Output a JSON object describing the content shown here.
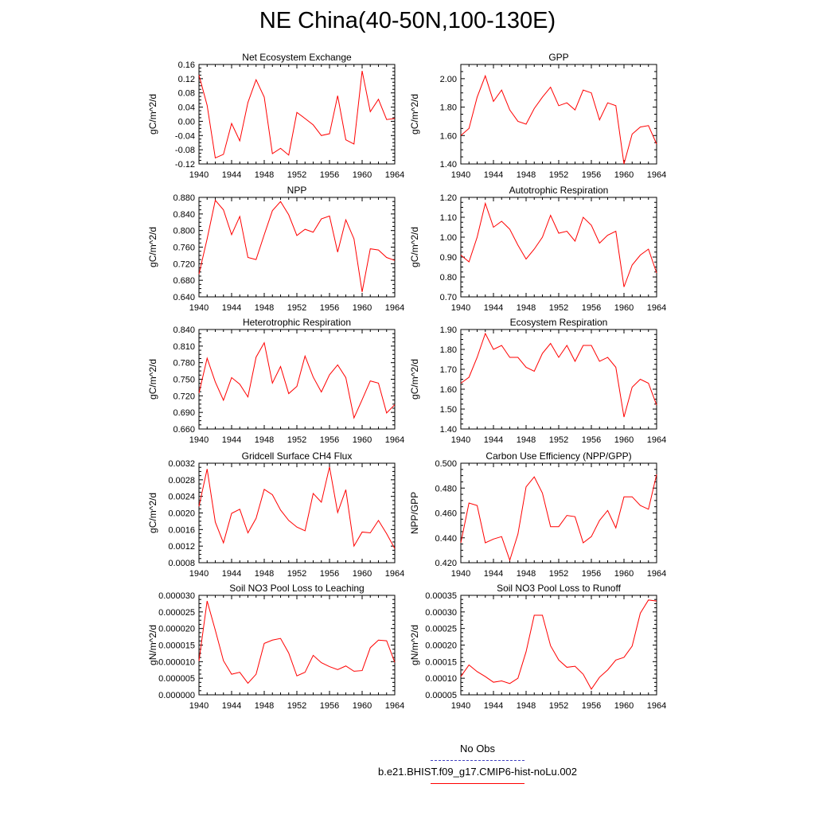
{
  "title": "NE China(40-50N,100-130E)",
  "colors": {
    "model": "#ff0000",
    "obs": "#4040c0"
  },
  "legend": {
    "obs_label": "No Obs",
    "model_label": "b.e21.BHIST.f09_g17.CMIP6-hist-noLu.002"
  },
  "chart_data": [
    {
      "type": "line",
      "title": "Net Ecosystem Exchange",
      "ylabel": "gC/m^2/d",
      "xlim": [
        1940,
        1964
      ],
      "ylim": [
        -0.12,
        0.16
      ],
      "xticks": [
        "1940",
        "1944",
        "1948",
        "1952",
        "1956",
        "1960",
        "1964"
      ],
      "yticks": [
        "-0.12",
        "-0.08",
        "-0.04",
        "0.00",
        "0.04",
        "0.08",
        "0.12",
        "0.16"
      ],
      "x": [
        1940,
        1941,
        1942,
        1943,
        1944,
        1945,
        1946,
        1947,
        1948,
        1949,
        1950,
        1951,
        1952,
        1953,
        1954,
        1955,
        1956,
        1957,
        1958,
        1959,
        1960,
        1961,
        1962,
        1963,
        1964
      ],
      "series": [
        {
          "values": [
            0.13,
            0.045,
            -0.103,
            -0.093,
            -0.006,
            -0.055,
            0.053,
            0.117,
            0.068,
            -0.091,
            -0.076,
            -0.095,
            0.025,
            0.008,
            -0.01,
            -0.04,
            -0.035,
            0.072,
            -0.052,
            -0.064,
            0.142,
            0.027,
            0.062,
            0.005,
            0.008
          ]
        }
      ]
    },
    {
      "type": "line",
      "title": "GPP",
      "ylabel": "gC/m^2/d",
      "xlim": [
        1940,
        1964
      ],
      "ylim": [
        1.4,
        2.1
      ],
      "xticks": [
        "1940",
        "1944",
        "1948",
        "1952",
        "1956",
        "1960",
        "1964"
      ],
      "yticks": [
        "1.40",
        "1.60",
        "1.80",
        "2.00"
      ],
      "x": [
        1940,
        1941,
        1942,
        1943,
        1944,
        1945,
        1946,
        1947,
        1948,
        1949,
        1950,
        1951,
        1952,
        1953,
        1954,
        1955,
        1956,
        1957,
        1958,
        1959,
        1960,
        1961,
        1962,
        1963,
        1964
      ],
      "series": [
        {
          "values": [
            1.6,
            1.65,
            1.87,
            2.02,
            1.84,
            1.92,
            1.78,
            1.7,
            1.68,
            1.79,
            1.87,
            1.94,
            1.81,
            1.83,
            1.78,
            1.92,
            1.9,
            1.71,
            1.83,
            1.81,
            1.4,
            1.61,
            1.66,
            1.67,
            1.54
          ]
        }
      ]
    },
    {
      "type": "line",
      "title": "NPP",
      "ylabel": "gC/m^2/d",
      "xlim": [
        1940,
        1964
      ],
      "ylim": [
        0.64,
        0.88
      ],
      "xticks": [
        "1940",
        "1944",
        "1948",
        "1952",
        "1956",
        "1960",
        "1964"
      ],
      "yticks": [
        "0.640",
        "0.680",
        "0.720",
        "0.760",
        "0.800",
        "0.840",
        "0.880"
      ],
      "x": [
        1940,
        1941,
        1942,
        1943,
        1944,
        1945,
        1946,
        1947,
        1948,
        1949,
        1950,
        1951,
        1952,
        1953,
        1954,
        1955,
        1956,
        1957,
        1958,
        1959,
        1960,
        1961,
        1962,
        1963,
        1964
      ],
      "series": [
        {
          "values": [
            0.695,
            0.78,
            0.873,
            0.85,
            0.79,
            0.834,
            0.735,
            0.73,
            0.79,
            0.848,
            0.87,
            0.838,
            0.788,
            0.803,
            0.796,
            0.828,
            0.835,
            0.748,
            0.826,
            0.78,
            0.652,
            0.756,
            0.753,
            0.735,
            0.728
          ]
        }
      ]
    },
    {
      "type": "line",
      "title": "Autotrophic Respiration",
      "ylabel": "gC/m^2/d",
      "xlim": [
        1940,
        1964
      ],
      "ylim": [
        0.7,
        1.2
      ],
      "xticks": [
        "1940",
        "1944",
        "1948",
        "1952",
        "1956",
        "1960",
        "1964"
      ],
      "yticks": [
        "0.70",
        "0.80",
        "0.90",
        "1.00",
        "1.10",
        "1.20"
      ],
      "x": [
        1940,
        1941,
        1942,
        1943,
        1944,
        1945,
        1946,
        1947,
        1948,
        1949,
        1950,
        1951,
        1952,
        1953,
        1954,
        1955,
        1956,
        1957,
        1958,
        1959,
        1960,
        1961,
        1962,
        1963,
        1964
      ],
      "series": [
        {
          "values": [
            0.91,
            0.876,
            1.0,
            1.17,
            1.05,
            1.08,
            1.04,
            0.96,
            0.89,
            0.94,
            1.0,
            1.11,
            1.02,
            1.03,
            0.98,
            1.1,
            1.06,
            0.97,
            1.01,
            1.03,
            0.75,
            0.86,
            0.91,
            0.94,
            0.82
          ]
        }
      ]
    },
    {
      "type": "line",
      "title": "Heterotrophic Respiration",
      "ylabel": "gC/m^2/d",
      "xlim": [
        1940,
        1964
      ],
      "ylim": [
        0.66,
        0.84
      ],
      "xticks": [
        "1940",
        "1944",
        "1948",
        "1952",
        "1956",
        "1960",
        "1964"
      ],
      "yticks": [
        "0.660",
        "0.690",
        "0.720",
        "0.750",
        "0.780",
        "0.810",
        "0.840"
      ],
      "x": [
        1940,
        1941,
        1942,
        1943,
        1944,
        1945,
        1946,
        1947,
        1948,
        1949,
        1950,
        1951,
        1952,
        1953,
        1954,
        1955,
        1956,
        1957,
        1958,
        1959,
        1960,
        1961,
        1962,
        1963,
        1964
      ],
      "series": [
        {
          "values": [
            0.725,
            0.788,
            0.745,
            0.712,
            0.753,
            0.741,
            0.718,
            0.79,
            0.816,
            0.743,
            0.773,
            0.724,
            0.737,
            0.792,
            0.754,
            0.727,
            0.758,
            0.776,
            0.753,
            0.68,
            0.713,
            0.747,
            0.743,
            0.689,
            0.704
          ]
        }
      ]
    },
    {
      "type": "line",
      "title": "Ecosystem Respiration",
      "ylabel": "gC/m^2/d",
      "xlim": [
        1940,
        1964
      ],
      "ylim": [
        1.4,
        1.9
      ],
      "xticks": [
        "1940",
        "1944",
        "1948",
        "1952",
        "1956",
        "1960",
        "1964"
      ],
      "yticks": [
        "1.40",
        "1.50",
        "1.60",
        "1.70",
        "1.80",
        "1.90"
      ],
      "x": [
        1940,
        1941,
        1942,
        1943,
        1944,
        1945,
        1946,
        1947,
        1948,
        1949,
        1950,
        1951,
        1952,
        1953,
        1954,
        1955,
        1956,
        1957,
        1958,
        1959,
        1960,
        1961,
        1962,
        1963,
        1964
      ],
      "series": [
        {
          "values": [
            1.63,
            1.66,
            1.76,
            1.88,
            1.8,
            1.82,
            1.76,
            1.76,
            1.71,
            1.69,
            1.78,
            1.83,
            1.76,
            1.82,
            1.74,
            1.82,
            1.82,
            1.74,
            1.76,
            1.71,
            1.46,
            1.61,
            1.65,
            1.63,
            1.52
          ]
        }
      ]
    },
    {
      "type": "line",
      "title": "Gridcell Surface CH4 Flux",
      "ylabel": "gC/m^2/d",
      "xlim": [
        1940,
        1964
      ],
      "ylim": [
        0.0008,
        0.0032
      ],
      "xticks": [
        "1940",
        "1944",
        "1948",
        "1952",
        "1956",
        "1960",
        "1964"
      ],
      "yticks": [
        "0.0008",
        "0.0012",
        "0.0016",
        "0.0020",
        "0.0024",
        "0.0028",
        "0.0032"
      ],
      "x": [
        1940,
        1941,
        1942,
        1943,
        1944,
        1945,
        1946,
        1947,
        1948,
        1949,
        1950,
        1951,
        1952,
        1953,
        1954,
        1955,
        1956,
        1957,
        1958,
        1959,
        1960,
        1961,
        1962,
        1963,
        1964
      ],
      "series": [
        {
          "values": [
            0.00216,
            0.00306,
            0.00178,
            0.00128,
            0.00199,
            0.00209,
            0.00152,
            0.00187,
            0.00257,
            0.00244,
            0.00207,
            0.00182,
            0.00166,
            0.00157,
            0.00247,
            0.00226,
            0.00311,
            0.00201,
            0.00256,
            0.0012,
            0.00154,
            0.00152,
            0.00182,
            0.0015,
            0.00114
          ]
        }
      ]
    },
    {
      "type": "line",
      "title": "Carbon Use Efficiency (NPP/GPP)",
      "ylabel": "NPP/GPP",
      "xlim": [
        1940,
        1964
      ],
      "ylim": [
        0.42,
        0.5
      ],
      "xticks": [
        "1940",
        "1944",
        "1948",
        "1952",
        "1956",
        "1960",
        "1964"
      ],
      "yticks": [
        "0.420",
        "0.440",
        "0.460",
        "0.480",
        "0.500"
      ],
      "x": [
        1940,
        1941,
        1942,
        1943,
        1944,
        1945,
        1946,
        1947,
        1948,
        1949,
        1950,
        1951,
        1952,
        1953,
        1954,
        1955,
        1956,
        1957,
        1958,
        1959,
        1960,
        1961,
        1962,
        1963,
        1964
      ],
      "series": [
        {
          "values": [
            0.436,
            0.468,
            0.466,
            0.436,
            0.439,
            0.441,
            0.422,
            0.443,
            0.481,
            0.489,
            0.476,
            0.449,
            0.449,
            0.458,
            0.457,
            0.436,
            0.441,
            0.454,
            0.462,
            0.448,
            0.473,
            0.473,
            0.466,
            0.463,
            0.491
          ]
        }
      ]
    },
    {
      "type": "line",
      "title": "Soil NO3 Pool Loss to Leaching",
      "ylabel": "gN/m^2/d",
      "xlim": [
        1940,
        1964
      ],
      "ylim": [
        0.0,
        3e-05
      ],
      "xticks": [
        "1940",
        "1944",
        "1948",
        "1952",
        "1956",
        "1960",
        "1964"
      ],
      "yticks": [
        "0.000000",
        "0.000005",
        "0.000010",
        "0.000015",
        "0.000020",
        "0.000025",
        "0.000030"
      ],
      "x": [
        1940,
        1941,
        1942,
        1943,
        1944,
        1945,
        1946,
        1947,
        1948,
        1949,
        1950,
        1951,
        1952,
        1953,
        1954,
        1955,
        1956,
        1957,
        1958,
        1959,
        1960,
        1961,
        1962,
        1963,
        1964
      ],
      "series": [
        {
          "values": [
            1.02e-05,
            2.83e-05,
            1.95e-05,
            1.03e-05,
            6.2e-06,
            6.8e-06,
            3.5e-06,
            6.2e-06,
            1.55e-05,
            1.65e-05,
            1.7e-05,
            1.26e-05,
            5.7e-06,
            6.8e-06,
            1.19e-05,
            9.7e-06,
            8.5e-06,
            7.6e-06,
            8.7e-06,
            7.1e-06,
            7.3e-06,
            1.42e-05,
            1.65e-05,
            1.63e-05,
            9.8e-06
          ]
        }
      ]
    },
    {
      "type": "line",
      "title": "Soil NO3 Pool Loss to Runoff",
      "ylabel": "gN/m^2/d",
      "xlim": [
        1940,
        1964
      ],
      "ylim": [
        5e-05,
        0.00035
      ],
      "xticks": [
        "1940",
        "1944",
        "1948",
        "1952",
        "1956",
        "1960",
        "1964"
      ],
      "yticks": [
        "0.00005",
        "0.00010",
        "0.00015",
        "0.00020",
        "0.00025",
        "0.00030",
        "0.00035"
      ],
      "x": [
        1940,
        1941,
        1942,
        1943,
        1944,
        1945,
        1946,
        1947,
        1948,
        1949,
        1950,
        1951,
        1952,
        1953,
        1954,
        1955,
        1956,
        1957,
        1958,
        1959,
        1960,
        1961,
        1962,
        1963,
        1964
      ],
      "series": [
        {
          "values": [
            0.000105,
            0.00014,
            0.00012,
            0.000105,
            8.8e-05,
            9.2e-05,
            8.4e-05,
            0.0001,
            0.00018,
            0.00029,
            0.00029,
            0.000198,
            0.000155,
            0.000133,
            0.000136,
            0.000112,
            6.7e-05,
            0.000103,
            0.000125,
            0.000155,
            0.000163,
            0.000197,
            0.000296,
            0.000336,
            0.000333
          ]
        }
      ]
    }
  ]
}
